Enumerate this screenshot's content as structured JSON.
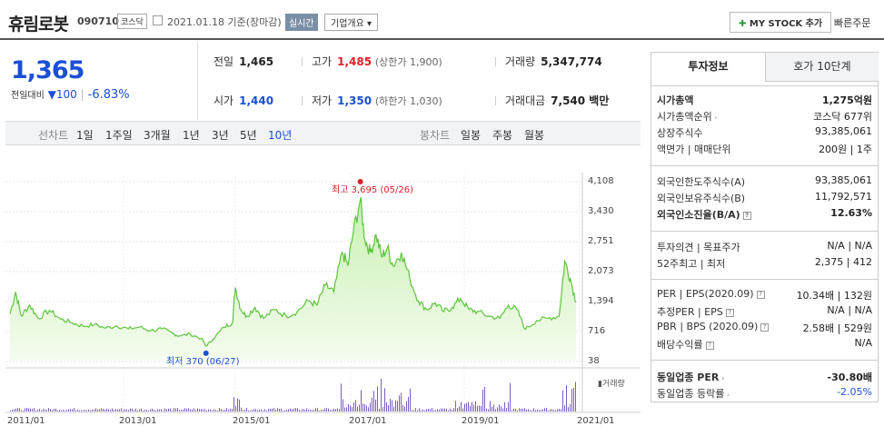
{
  "header": {
    "name": "휴림로봇",
    "code": "090710",
    "market": "코스닥",
    "date": "2021.01.18 기준(장마감)",
    "realtime": "실시간",
    "company_info": "기업개요 ▾",
    "mystock": "MY STOCK 추가",
    "quick_order": "빠른주문"
  },
  "price": {
    "current": "1,365",
    "diff_label": "전일대비",
    "diff_arrow": "▼",
    "diff": "100",
    "pct": "-6.83%"
  },
  "stats": {
    "prev_k": "전일",
    "prev_v": "1,465",
    "high_k": "고가",
    "high_v": "1,485",
    "high_sub": "(상한가 1,900)",
    "vol_k": "거래량",
    "vol_v": "5,347,774",
    "open_k": "시가",
    "open_v": "1,440",
    "low_k": "저가",
    "low_v": "1,350",
    "low_sub": "(하한가 1,030)",
    "amt_k": "거래대금",
    "amt_v": "7,540 백만"
  },
  "period_bar": {
    "line_label": "선차트",
    "periods": [
      "1일",
      "1주일",
      "3개월",
      "1년",
      "3년",
      "5년",
      "10년"
    ],
    "candle_label": "봉차트",
    "candles": [
      "일봉",
      "주봉",
      "월봉"
    ]
  },
  "chart_data": {
    "type": "area",
    "y_ticks": [
      "4,108",
      "3,430",
      "2,751",
      "2,073",
      "1,394",
      "716",
      "38"
    ],
    "x_ticks": [
      "2011/01",
      "2013/01",
      "2015/01",
      "2017/01",
      "2019/01",
      "2021/01"
    ],
    "ylim": [
      38,
      4108
    ],
    "high_label": "최고 3,695 (05/26)",
    "low_label": "최저 370 (06/27)",
    "volume_label": "거래량",
    "colors": {
      "line": "#5cc43a",
      "fill_top": "#c8f0b0",
      "fill_bottom": "#f4fcef",
      "volume": "#7a5cc0"
    },
    "series": [
      {
        "values": [
          [
            2011.0,
            1100
          ],
          [
            2011.1,
            1600
          ],
          [
            2011.2,
            1050
          ],
          [
            2011.35,
            1300
          ],
          [
            2011.5,
            1000
          ],
          [
            2011.7,
            1180
          ],
          [
            2011.9,
            980
          ],
          [
            2012.1,
            900
          ],
          [
            2012.3,
            820
          ],
          [
            2012.5,
            860
          ],
          [
            2012.7,
            780
          ],
          [
            2012.9,
            830
          ],
          [
            2013.1,
            760
          ],
          [
            2013.3,
            800
          ],
          [
            2013.5,
            720
          ],
          [
            2013.7,
            760
          ],
          [
            2013.9,
            650
          ],
          [
            2014.0,
            600
          ],
          [
            2014.2,
            640
          ],
          [
            2014.4,
            540
          ],
          [
            2014.48,
            370
          ],
          [
            2014.6,
            520
          ],
          [
            2014.8,
            800
          ],
          [
            2014.95,
            900
          ],
          [
            2015.0,
            1700
          ],
          [
            2015.1,
            1200
          ],
          [
            2015.2,
            1050
          ],
          [
            2015.35,
            1250
          ],
          [
            2015.5,
            1000
          ],
          [
            2015.7,
            1200
          ],
          [
            2015.9,
            1050
          ],
          [
            2016.1,
            1150
          ],
          [
            2016.3,
            1400
          ],
          [
            2016.45,
            1300
          ],
          [
            2016.6,
            1750
          ],
          [
            2016.75,
            1600
          ],
          [
            2016.9,
            2500
          ],
          [
            2017.0,
            2200
          ],
          [
            2017.1,
            3000
          ],
          [
            2017.22,
            3695
          ],
          [
            2017.3,
            2800
          ],
          [
            2017.4,
            2500
          ],
          [
            2017.5,
            2900
          ],
          [
            2017.6,
            2400
          ],
          [
            2017.7,
            2600
          ],
          [
            2017.8,
            2200
          ],
          [
            2017.95,
            2500
          ],
          [
            2018.1,
            1900
          ],
          [
            2018.25,
            1400
          ],
          [
            2018.4,
            1200
          ],
          [
            2018.55,
            1350
          ],
          [
            2018.7,
            1150
          ],
          [
            2018.85,
            1250
          ],
          [
            2019.0,
            1450
          ],
          [
            2019.15,
            1200
          ],
          [
            2019.3,
            1150
          ],
          [
            2019.5,
            1050
          ],
          [
            2019.7,
            1000
          ],
          [
            2019.85,
            1300
          ],
          [
            2020.0,
            1200
          ],
          [
            2020.15,
            750
          ],
          [
            2020.35,
            950
          ],
          [
            2020.55,
            1000
          ],
          [
            2020.75,
            1050
          ],
          [
            2020.85,
            2300
          ],
          [
            2020.95,
            1900
          ],
          [
            2021.05,
            1365
          ]
        ]
      }
    ]
  },
  "side": {
    "tab_on": "투자정보",
    "tab_off": "호가 10단계",
    "rows": [
      {
        "k": "시가총액",
        "v": "1,275억원",
        "bold": true
      },
      {
        "k": "시가총액순위",
        "v": "코스닥 677위",
        "arrow": true
      },
      {
        "k": "상장주식수",
        "v": "93,385,061"
      },
      {
        "k": "액면가 | 매매단위",
        "v": "200원 | 1주"
      },
      {
        "k": "외국인한도주식수(A)",
        "v": "93,385,061"
      },
      {
        "k": "외국인보유주식수(B)",
        "v": "11,792,571"
      },
      {
        "k": "외국인소진율(B/A)",
        "v": "12.63%",
        "bold": true,
        "q": true
      },
      {
        "k": "투자의견 | 목표주가",
        "v": "N/A | N/A"
      },
      {
        "k": "52주최고 | 최저",
        "v": "2,375 | 412"
      },
      {
        "k": "PER | EPS(2020.09)",
        "v": "10.34배 | 132원",
        "q": true
      },
      {
        "k": "추정PER | EPS",
        "v": "N/A | N/A",
        "q": true
      },
      {
        "k": "PBR | BPS (2020.09)",
        "v": "2.58배 | 529원",
        "q": true
      },
      {
        "k": "배당수익률",
        "v": "N/A",
        "q": true
      },
      {
        "k": "동일업종 PER",
        "v": "-30.80배",
        "bold": true,
        "arrow": true
      },
      {
        "k": "동일업종 등락률",
        "v": "-2.05%",
        "blue": true,
        "arrow": true
      }
    ]
  }
}
